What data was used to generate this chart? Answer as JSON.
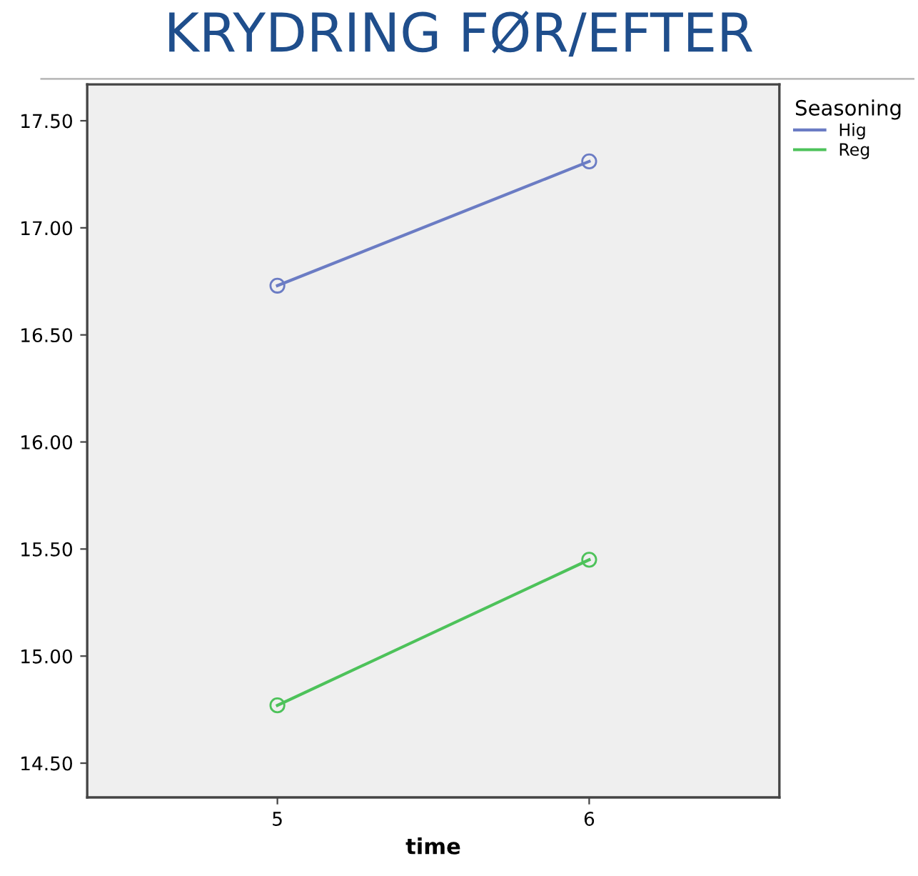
{
  "chart_data": {
    "type": "line",
    "title": "KRYDRING FØR/EFTER",
    "xlabel": "time",
    "legend_title": "Seasoning",
    "categories": [
      "5",
      "6"
    ],
    "series": [
      {
        "name": "Hig",
        "color": "#6b7cc4",
        "values": [
          16.73,
          17.31
        ]
      },
      {
        "name": "Reg",
        "color": "#4dc25a",
        "values": [
          14.77,
          15.45
        ]
      }
    ],
    "ylim": [
      14.34,
      17.67
    ],
    "yticks": [
      {
        "value": 14.5,
        "label": "14.50"
      },
      {
        "value": 15.0,
        "label": "15.00"
      },
      {
        "value": 15.5,
        "label": "15.50"
      },
      {
        "value": 16.0,
        "label": "16.00"
      },
      {
        "value": 16.5,
        "label": "16.50"
      },
      {
        "value": 17.0,
        "label": "17.00"
      },
      {
        "value": 17.5,
        "label": "17.50"
      }
    ],
    "grid": false,
    "legend": "top right",
    "marker": "circle",
    "line_style": "solid"
  }
}
